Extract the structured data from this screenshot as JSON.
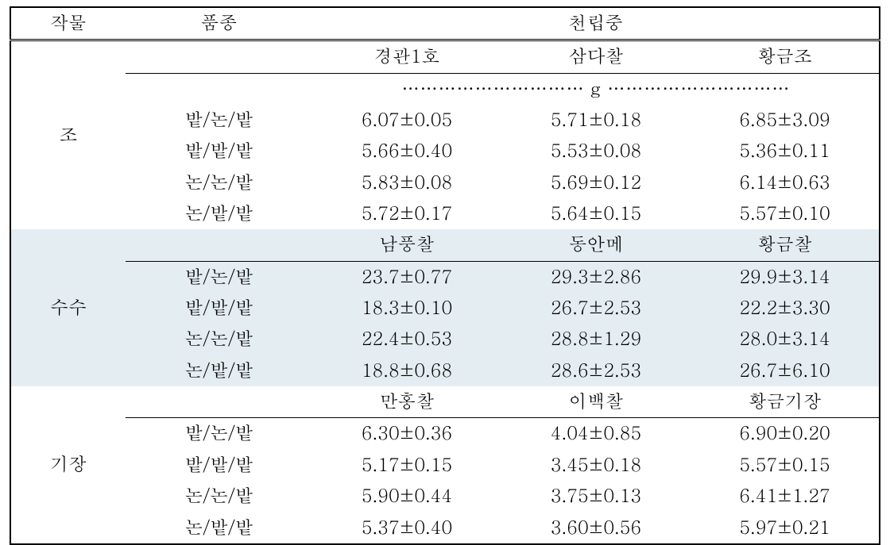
{
  "headers": {
    "crop": "작물",
    "variety": "품종",
    "thousand_grain_weight": "천립중"
  },
  "unit_line": "………………………… g …………………………",
  "sections": [
    {
      "crop_label": "조",
      "shade": false,
      "var_headers": [
        "경관1호",
        "삼다찰",
        "황금조"
      ],
      "rows": [
        {
          "label": "밭/논/밭",
          "v": [
            "6.07±0.05",
            "5.71±0.18",
            "6.85±3.09"
          ]
        },
        {
          "label": "밭/밭/밭",
          "v": [
            "5.66±0.40",
            "5.53±0.08",
            "5.36±0.11"
          ]
        },
        {
          "label": "논/논/밭",
          "v": [
            "5.83±0.08",
            "5.69±0.12",
            "6.14±0.63"
          ]
        },
        {
          "label": "논/밭/밭",
          "v": [
            "5.72±0.17",
            "5.64±0.15",
            "5.57±0.10"
          ]
        }
      ]
    },
    {
      "crop_label": "수수",
      "shade": true,
      "var_headers": [
        "남풍찰",
        "동안메",
        "황금찰"
      ],
      "rows": [
        {
          "label": "밭/논/밭",
          "v": [
            "23.7±0.77",
            "29.3±2.86",
            "29.9±3.14"
          ]
        },
        {
          "label": "밭/밭/밭",
          "v": [
            "18.3±0.10",
            "26.7±2.53",
            "22.2±3.30"
          ]
        },
        {
          "label": "논/논/밭",
          "v": [
            "22.4±0.53",
            "28.8±1.29",
            "28.0±3.14"
          ]
        },
        {
          "label": "논/밭/밭",
          "v": [
            "18.8±0.68",
            "28.6±2.53",
            "26.7±6.10"
          ]
        }
      ]
    },
    {
      "crop_label": "기장",
      "shade": false,
      "var_headers": [
        "만홍찰",
        "이백찰",
        "황금기장"
      ],
      "rows": [
        {
          "label": "밭/논/밭",
          "v": [
            "6.30±0.36",
            "4.04±0.85",
            "6.90±0.20"
          ]
        },
        {
          "label": "밭/밭/밭",
          "v": [
            "5.17±0.15",
            "3.45±0.18",
            "5.57±0.15"
          ]
        },
        {
          "label": "논/논/밭",
          "v": [
            "5.90±0.44",
            "3.75±0.13",
            "6.41±1.27"
          ]
        },
        {
          "label": "논/밭/밭",
          "v": [
            "5.37±0.40",
            "3.60±0.56",
            "5.97±0.21"
          ]
        }
      ]
    }
  ]
}
